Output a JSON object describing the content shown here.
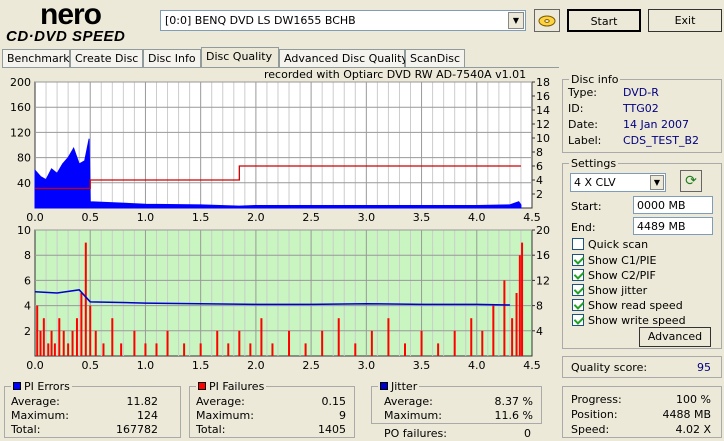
{
  "app": {
    "logo_top": "nero",
    "logo_bottom": "CD·DVD SPEED",
    "drive": "[0:0]   BENQ DVD LS DW1655 BCHB",
    "start_label": "Start",
    "exit_label": "Exit"
  },
  "tabs": [
    "Benchmark",
    "Create Disc",
    "Disc Info",
    "Disc Quality",
    "Advanced Disc Quality",
    "ScanDisc"
  ],
  "active_tab": "Disc Quality",
  "chart_header": "recorded with Optiarc  DVD RW AD-7540A   v1.01",
  "colors": {
    "pie": "#0000ff",
    "pif": "#ff0000",
    "speed": "#cc0000",
    "jitter": "#0000cc",
    "lower_bg": "#c8f5c0",
    "upper_bg": "#ffffff"
  },
  "chart_data": [
    {
      "type": "area",
      "name_hint": "PI Errors (upper chart)",
      "xlim": [
        0,
        4.5
      ],
      "x_ticks": [
        "0.0",
        "0.5",
        "1.0",
        "1.5",
        "2.0",
        "2.5",
        "3.0",
        "3.5",
        "4.0",
        "4.5"
      ],
      "ylim_left": [
        0,
        200
      ],
      "y_ticks_left": [
        "200",
        "160",
        "120",
        "80",
        "40"
      ],
      "ylim_right": [
        0,
        18
      ],
      "y_ticks_right": [
        "18",
        "16",
        "14",
        "12",
        "10",
        "8",
        "6",
        "4",
        "2"
      ],
      "series": [
        {
          "axis": "left",
          "x": [
            0.0,
            0.05,
            0.1,
            0.15,
            0.2,
            0.25,
            0.3,
            0.35,
            0.4,
            0.45,
            0.49,
            0.5,
            1.0,
            1.5,
            1.85,
            2.0,
            2.5,
            3.0,
            3.5,
            4.0,
            4.3,
            4.38,
            4.4
          ],
          "y": [
            60,
            50,
            45,
            62,
            55,
            70,
            80,
            95,
            70,
            75,
            110,
            10,
            6,
            5,
            3,
            4,
            4,
            4,
            4,
            4,
            5,
            10,
            5
          ]
        },
        {
          "axis": "right",
          "x": [
            0.0,
            0.5,
            0.5,
            1.85,
            1.85,
            4.4
          ],
          "y": [
            2.8,
            2.8,
            4.0,
            4.0,
            6.0,
            6.0
          ]
        }
      ]
    },
    {
      "type": "bar",
      "name_hint": "PI Failures (lower chart)",
      "xlim": [
        0,
        4.5
      ],
      "x_ticks": [
        "0.0",
        "0.5",
        "1.0",
        "1.5",
        "2.0",
        "2.5",
        "3.0",
        "3.5",
        "4.0",
        "4.5"
      ],
      "ylim_left": [
        0,
        10
      ],
      "y_ticks_left": [
        "10",
        "8",
        "6",
        "4",
        "2"
      ],
      "ylim_right": [
        0,
        20
      ],
      "y_ticks_right": [
        "20",
        "16",
        "12",
        "8",
        "4"
      ],
      "series": [
        {
          "axis": "right",
          "x": [
            0.0,
            0.2,
            0.4,
            0.5,
            1.0,
            1.5,
            2.0,
            2.5,
            3.0,
            3.5,
            4.0,
            4.3
          ],
          "y": [
            10.2,
            10.0,
            10.5,
            8.6,
            8.4,
            8.3,
            8.2,
            8.2,
            8.3,
            8.2,
            8.2,
            8.1
          ]
        }
      ]
    }
  ],
  "disc_info": {
    "title": "Disc info",
    "rows": [
      {
        "label": "Type:",
        "value": "DVD-R"
      },
      {
        "label": "ID:",
        "value": "TTG02"
      },
      {
        "label": "Date:",
        "value": "14 Jan 2007"
      },
      {
        "label": "Label:",
        "value": "CDS_TEST_B2"
      }
    ]
  },
  "settings": {
    "title": "Settings",
    "speed": "4 X CLV",
    "start_label": "Start:",
    "start_value": "0000 MB",
    "end_label": "End:",
    "end_value": "4489 MB",
    "checks": [
      {
        "label": "Quick scan",
        "checked": false
      },
      {
        "label": "Show C1/PIE",
        "checked": true
      },
      {
        "label": "Show C2/PIF",
        "checked": true
      },
      {
        "label": "Show jitter",
        "checked": true
      },
      {
        "label": "Show read speed",
        "checked": true
      },
      {
        "label": "Show write speed",
        "checked": true
      }
    ],
    "advanced_label": "Advanced"
  },
  "quality": {
    "label": "Quality score:",
    "value": "95"
  },
  "progress": {
    "rows": [
      {
        "label": "Progress:",
        "value": "100 %"
      },
      {
        "label": "Position:",
        "value": "4488 MB"
      },
      {
        "label": "Speed:",
        "value": "4.02 X"
      }
    ]
  },
  "pi_errors": {
    "title": "PI Errors",
    "rows": [
      {
        "label": "Average:",
        "value": "11.82"
      },
      {
        "label": "Maximum:",
        "value": "124"
      },
      {
        "label": "Total:",
        "value": "167782"
      }
    ]
  },
  "pi_failures": {
    "title": "PI Failures",
    "rows": [
      {
        "label": "Average:",
        "value": "0.15"
      },
      {
        "label": "Maximum:",
        "value": "9"
      },
      {
        "label": "Total:",
        "value": "1405"
      }
    ]
  },
  "jitter": {
    "title": "Jitter",
    "rows": [
      {
        "label": "Average:",
        "value": "8.37 %"
      },
      {
        "label": "Maximum:",
        "value": "11.6 %"
      }
    ],
    "po_label": "PO failures:",
    "po_value": "0"
  }
}
